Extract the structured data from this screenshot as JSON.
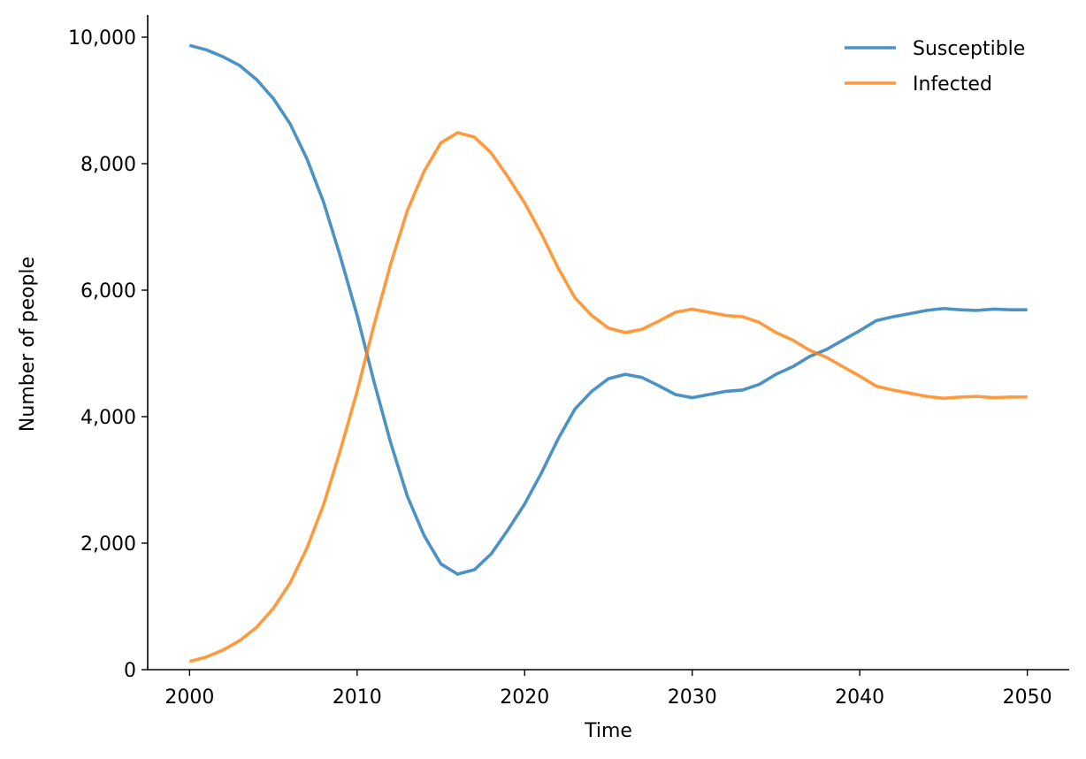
{
  "chart_data": {
    "type": "line",
    "title": "",
    "xlabel": "Time",
    "ylabel": "Number of people",
    "xlim": [
      1997.5,
      2052.5
    ],
    "ylim": [
      0,
      10350
    ],
    "xticks": [
      2000,
      2010,
      2020,
      2030,
      2040,
      2050
    ],
    "yticks": [
      0,
      2000,
      4000,
      6000,
      8000,
      10000
    ],
    "xtick_labels": [
      "2000",
      "2010",
      "2020",
      "2030",
      "2040",
      "2050"
    ],
    "ytick_labels": [
      "0",
      "2,000",
      "4,000",
      "6,000",
      "8,000",
      "10,000"
    ],
    "grid": false,
    "legend_position": "top-right",
    "x": [
      2000,
      2001,
      2002,
      2003,
      2004,
      2005,
      2006,
      2007,
      2008,
      2009,
      2010,
      2011,
      2012,
      2013,
      2014,
      2015,
      2016,
      2017,
      2018,
      2019,
      2020,
      2021,
      2022,
      2023,
      2024,
      2025,
      2026,
      2027,
      2028,
      2029,
      2030,
      2031,
      2032,
      2033,
      2034,
      2035,
      2036,
      2037,
      2038,
      2039,
      2040,
      2041,
      2042,
      2043,
      2044,
      2045,
      2046,
      2047,
      2048,
      2049,
      2050
    ],
    "series": [
      {
        "name": "Susceptible",
        "color": "#1f77b4",
        "values": [
          9870,
          9800,
          9690,
          9550,
          9330,
          9030,
          8630,
          8080,
          7390,
          6530,
          5600,
          4560,
          3590,
          2740,
          2120,
          1670,
          1510,
          1580,
          1830,
          2210,
          2620,
          3110,
          3650,
          4120,
          4400,
          4600,
          4670,
          4620,
          4490,
          4350,
          4300,
          4350,
          4400,
          4420,
          4510,
          4670,
          4790,
          4950,
          5060,
          5210,
          5360,
          5520,
          5580,
          5630,
          5680,
          5710,
          5690,
          5680,
          5700,
          5690,
          5690
        ]
      },
      {
        "name": "Infected",
        "color": "#ff7f0e",
        "values": [
          130,
          200,
          310,
          460,
          670,
          970,
          1370,
          1920,
          2610,
          3470,
          4400,
          5440,
          6410,
          7260,
          7880,
          8330,
          8490,
          8420,
          8170,
          7790,
          7380,
          6890,
          6350,
          5880,
          5600,
          5400,
          5330,
          5380,
          5510,
          5650,
          5700,
          5650,
          5600,
          5580,
          5490,
          5330,
          5210,
          5050,
          4940,
          4790,
          4640,
          4480,
          4420,
          4370,
          4320,
          4290,
          4310,
          4320,
          4300,
          4310,
          4310
        ]
      }
    ]
  }
}
